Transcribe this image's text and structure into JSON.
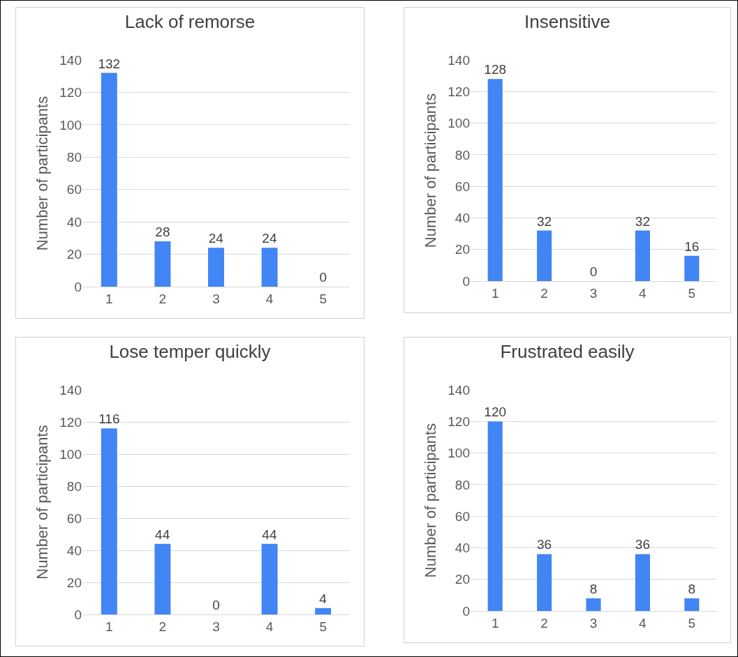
{
  "chart_data": [
    {
      "type": "bar",
      "title": "Lack of remorse",
      "ylabel": "Number of participants",
      "categories": [
        "1",
        "2",
        "3",
        "4",
        "5"
      ],
      "values": [
        132,
        28,
        24,
        24,
        0
      ],
      "color": "#4285f4",
      "ylim": [
        0,
        140
      ],
      "yticks": [
        0,
        20,
        40,
        60,
        80,
        100,
        120,
        140
      ],
      "grid": "y",
      "data_labels": true
    },
    {
      "type": "bar",
      "title": "Insensitive",
      "ylabel": "Number of participants",
      "categories": [
        "1",
        "2",
        "3",
        "4",
        "5"
      ],
      "values": [
        128,
        32,
        0,
        32,
        16
      ],
      "color": "#4285f4",
      "ylim": [
        0,
        140
      ],
      "yticks": [
        0,
        20,
        40,
        60,
        80,
        100,
        120,
        140
      ],
      "grid": "y",
      "data_labels": true
    },
    {
      "type": "bar",
      "title": "Lose temper quickly",
      "ylabel": "Number of participants",
      "categories": [
        "1",
        "2",
        "3",
        "4",
        "5"
      ],
      "values": [
        116,
        44,
        0,
        44,
        4
      ],
      "color": "#4285f4",
      "ylim": [
        0,
        140
      ],
      "yticks": [
        0,
        20,
        40,
        60,
        80,
        100,
        120,
        140
      ],
      "grid": "y",
      "data_labels": true
    },
    {
      "type": "bar",
      "title": "Frustrated easily",
      "ylabel": "Number of participants",
      "categories": [
        "1",
        "2",
        "3",
        "4",
        "5"
      ],
      "values": [
        120,
        36,
        8,
        36,
        8
      ],
      "color": "#4285f4",
      "ylim": [
        0,
        140
      ],
      "yticks": [
        0,
        20,
        40,
        60,
        80,
        100,
        120,
        140
      ],
      "grid": "y",
      "data_labels": true
    }
  ]
}
